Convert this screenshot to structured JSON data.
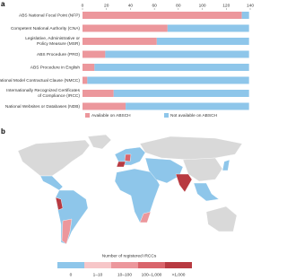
{
  "chart_data": [
    {
      "type": "bar",
      "panel": "a",
      "orientation": "horizontal",
      "stacked": true,
      "categories": [
        "ABS National Focal Point (NFP)",
        "Competent National Authority (CNA)",
        "Legislative, Administrative or\nPolicy Measure (MSR)",
        "ABS Procedure (PRO)",
        "ABS Procedure in English",
        "National Model Contractual Clause (NMCC)",
        "Internationally Recognized Certificates\nof Compliance (IRCC)",
        "National Websites or Databases (NDB)"
      ],
      "series": [
        {
          "name": "Available on ABSCH",
          "color": "#ec979c",
          "values": [
            133,
            71,
            62,
            19,
            10,
            4,
            26,
            36
          ]
        },
        {
          "name": "Not available on ABSCH",
          "color": "#8ec6ea",
          "values": [
            6,
            68,
            77,
            120,
            129,
            135,
            113,
            103
          ]
        }
      ],
      "xlim": [
        0,
        140
      ],
      "xticks": [
        0,
        20,
        40,
        60,
        80,
        100,
        120,
        140
      ],
      "legend": "bottom"
    },
    {
      "type": "map",
      "panel": "b",
      "legend_title": "Number of registered IRCCs",
      "legend_labels": [
        "0",
        "1–10",
        "10–100",
        "100–1,000",
        ">1,000"
      ],
      "legend_colors": [
        "#8ec6ea",
        "#f7c6c8",
        "#ec979c",
        "#d9646b",
        "#b83a41"
      ]
    }
  ]
}
